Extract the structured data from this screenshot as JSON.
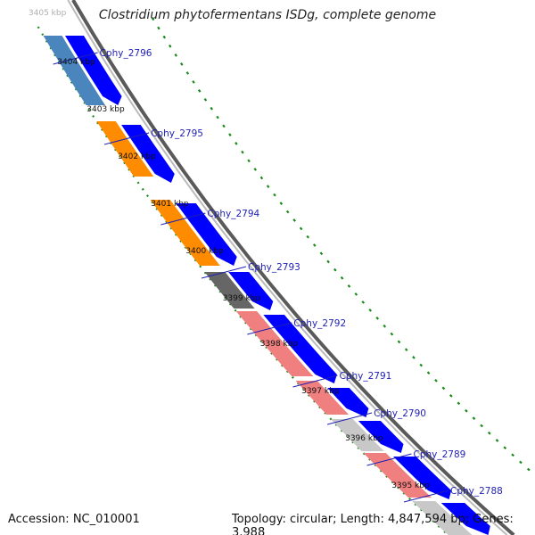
{
  "title": "Clostridium phytofermentans ISDg, complete genome",
  "footer": {
    "accession": "Accession: NC_010001",
    "summary": "Topology: circular; Length: 4,847,594 bp; Genes: 3,988"
  },
  "colors": {
    "forward_cds": "#0000ff",
    "backbone_dark": "#5a5a5a",
    "backbone_light": "#bbbbbb",
    "tick_green": "#1a8a1a",
    "label_blue": "#1f1fb4",
    "steelblue": "#4a86bd",
    "orange": "#ff8c00",
    "darkgray": "#666666",
    "salmon": "#f08080",
    "lightgray": "#c8c8c8"
  },
  "scale_labels": [
    "3405 kbp",
    "3404 kbp",
    "3403 kbp",
    "3402 kbp",
    "3401 kbp",
    "3400 kbp",
    "3399 kbp",
    "3398 kbp",
    "3397 kbp",
    "3396 kbp",
    "3395 kbp"
  ],
  "genes": [
    {
      "label": "Cphy_2796",
      "color": "steelblue"
    },
    {
      "label": "Cphy_2795",
      "color": "orange"
    },
    {
      "label": "Cphy_2794",
      "color": "orange"
    },
    {
      "label": "Cphy_2793",
      "color": "darkgray"
    },
    {
      "label": "Cphy_2792",
      "color": "salmon"
    },
    {
      "label": "Cphy_2791",
      "color": "salmon"
    },
    {
      "label": "Cphy_2790",
      "color": "lightgray"
    },
    {
      "label": "Cphy_2789",
      "color": "salmon"
    },
    {
      "label": "Cphy_2788",
      "color": "lightgray"
    }
  ]
}
